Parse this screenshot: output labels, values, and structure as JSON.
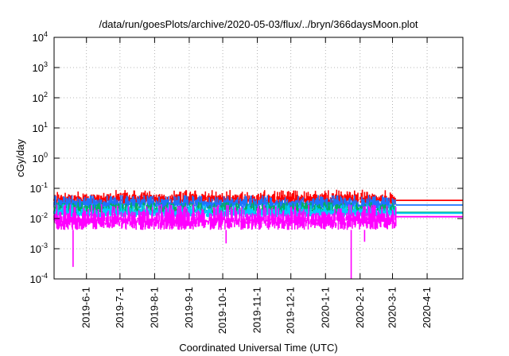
{
  "chart_data": {
    "type": "line",
    "title": "/data/run/goesPlots/archive/2020-05-03/flux/../bryn/366daysMoon.plot",
    "xlabel": "Coordinated Universal Time (UTC)",
    "ylabel": "cGy/day",
    "y_scale": "log",
    "ylim": [
      0.0001,
      10000
    ],
    "xlim": [
      "2019-05-03",
      "2020-05-03"
    ],
    "grid": true,
    "x_ticks": [
      "2019-6-1",
      "2019-7-1",
      "2019-8-1",
      "2019-9-1",
      "2019-10-1",
      "2019-11-1",
      "2019-12-1",
      "2020-1-1",
      "2020-2-1",
      "2020-3-1",
      "2020-4-1"
    ],
    "y_ticks": [
      {
        "value": 0.0001,
        "base": "10",
        "exp": "-4"
      },
      {
        "value": 0.001,
        "base": "10",
        "exp": "-3"
      },
      {
        "value": 0.01,
        "base": "10",
        "exp": "-2"
      },
      {
        "value": 0.1,
        "base": "10",
        "exp": "-1"
      },
      {
        "value": 1,
        "base": "10",
        "exp": "0"
      },
      {
        "value": 10,
        "base": "10",
        "exp": "1"
      },
      {
        "value": 100,
        "base": "10",
        "exp": "2"
      },
      {
        "value": 1000,
        "base": "10",
        "exp": "3"
      },
      {
        "value": 10000,
        "base": "10",
        "exp": "4"
      }
    ],
    "data_end": "2020-03-04",
    "series": [
      {
        "color": "#ff0000",
        "typical_low": 0.028,
        "typical_high": 0.065,
        "peak": 0.09,
        "final": 0.04
      },
      {
        "color": "#1e73ff",
        "typical_low": 0.02,
        "typical_high": 0.045,
        "peak": 0.06,
        "final": 0.028
      },
      {
        "color": "#00b060",
        "typical_low": 0.013,
        "typical_high": 0.028,
        "peak": 0.035,
        "final": 0.016
      },
      {
        "color": "#00c8ff",
        "typical_low": 0.011,
        "typical_high": 0.022,
        "peak": 0.03,
        "final": 0.015
      },
      {
        "color": "#ff00ff",
        "typical_low": 0.0042,
        "typical_high": 0.017,
        "peak": 0.03,
        "final": 0.0115,
        "dips": [
          {
            "date": "2019-05-20",
            "value": 0.00025
          },
          {
            "date": "2019-10-04",
            "value": 0.0015
          },
          {
            "date": "2020-01-24",
            "value": 0.0001
          },
          {
            "date": "2020-02-05",
            "value": 0.0017
          }
        ]
      }
    ]
  }
}
